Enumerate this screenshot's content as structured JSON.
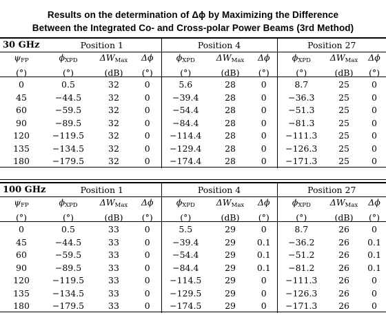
{
  "caption": {
    "line1": "Results on the determination of Δϕ by Maximizing the Difference",
    "line2": "Between the Integrated Co- and Cross-polar Power Beams (3rd Method)"
  },
  "column_headers": {
    "psi_fp": "ψFP",
    "phi_xpd": "ϕXPD",
    "delta_w_max": "ΔWMax",
    "delta_phi": "Δϕ",
    "unit_deg": "(°)",
    "unit_db": "(dB)"
  },
  "blocks": [
    {
      "frequency": "30 GHz",
      "positions": [
        "Position 1",
        "Position 4",
        "Position 27"
      ],
      "rows": [
        [
          "0",
          "0.5",
          "32",
          "0",
          "5.6",
          "28",
          "0",
          "8.7",
          "25",
          "0"
        ],
        [
          "45",
          "−44.5",
          "32",
          "0",
          "−39.4",
          "28",
          "0",
          "−36.3",
          "25",
          "0"
        ],
        [
          "60",
          "−59.5",
          "32",
          "0",
          "−54.4",
          "28",
          "0",
          "−51.3",
          "25",
          "0"
        ],
        [
          "90",
          "−89.5",
          "32",
          "0",
          "−84.4",
          "28",
          "0",
          "−81.3",
          "25",
          "0"
        ],
        [
          "120",
          "−119.5",
          "32",
          "0",
          "−114.4",
          "28",
          "0",
          "−111.3",
          "25",
          "0"
        ],
        [
          "135",
          "−134.5",
          "32",
          "0",
          "−129.4",
          "28",
          "0",
          "−126.3",
          "25",
          "0"
        ],
        [
          "180",
          "−179.5",
          "32",
          "0",
          "−174.4",
          "28",
          "0",
          "−171.3",
          "25",
          "0"
        ]
      ]
    },
    {
      "frequency": "100 GHz",
      "positions": [
        "Position 1",
        "Position 4",
        "Position 27"
      ],
      "rows": [
        [
          "0",
          "0.5",
          "33",
          "0",
          "5.5",
          "29",
          "0",
          "8.7",
          "26",
          "0"
        ],
        [
          "45",
          "−44.5",
          "33",
          "0",
          "−39.4",
          "29",
          "0.1",
          "−36.2",
          "26",
          "0.1"
        ],
        [
          "60",
          "−59.5",
          "33",
          "0",
          "−54.4",
          "29",
          "0.1",
          "−51.2",
          "26",
          "0.1"
        ],
        [
          "90",
          "−89.5",
          "33",
          "0",
          "−84.4",
          "29",
          "0.1",
          "−81.2",
          "26",
          "0.1"
        ],
        [
          "120",
          "−119.5",
          "33",
          "0",
          "−114.5",
          "29",
          "0",
          "−111.3",
          "26",
          "0"
        ],
        [
          "135",
          "−134.5",
          "33",
          "0",
          "−129.5",
          "29",
          "0",
          "−126.3",
          "26",
          "0"
        ],
        [
          "180",
          "−179.5",
          "33",
          "0",
          "−174.5",
          "29",
          "0",
          "−171.3",
          "26",
          "0"
        ]
      ]
    }
  ]
}
